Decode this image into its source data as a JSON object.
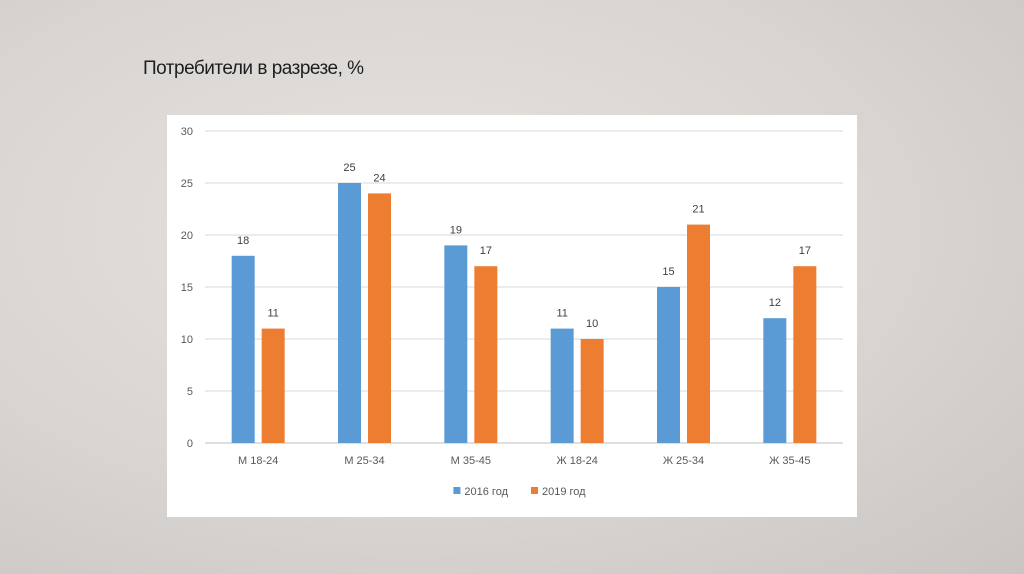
{
  "slide": {
    "title": "Потребители в разрезе, %"
  },
  "chart_data": {
    "type": "bar",
    "title": "",
    "xlabel": "",
    "ylabel": "",
    "ylim": [
      0,
      30
    ],
    "yticks": [
      0,
      5,
      10,
      15,
      20,
      25,
      30
    ],
    "grid": true,
    "legend_position": "bottom",
    "categories": [
      "М 18-24",
      "М 25-34",
      "М 35-45",
      "Ж 18-24",
      "Ж 25-34",
      "Ж 35-45"
    ],
    "series": [
      {
        "name": "2016 год",
        "color": "#5b9bd5",
        "values": [
          18,
          25,
          19,
          11,
          15,
          12
        ]
      },
      {
        "name": "2019 год",
        "color": "#ed7d31",
        "values": [
          11,
          24,
          17,
          10,
          21,
          17
        ]
      }
    ]
  }
}
